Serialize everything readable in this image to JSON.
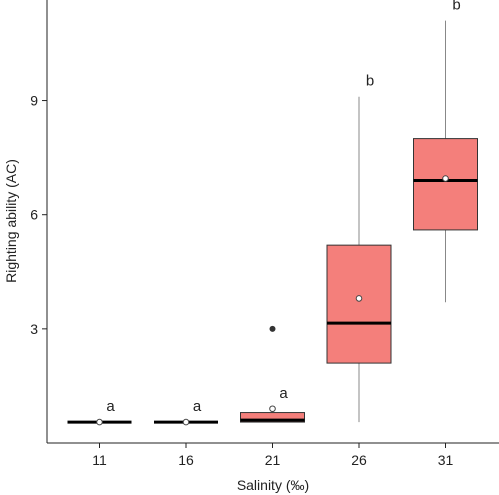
{
  "chart_data": {
    "type": "box",
    "xlabel": "Salinity (‰)",
    "ylabel": "Righting ability (AC)",
    "ylim": [
      0,
      11.3
    ],
    "yticks": [
      3,
      6,
      9
    ],
    "grid": false,
    "legend": "none",
    "box_color": "#f47f7b",
    "categories": [
      "11",
      "16",
      "21",
      "26",
      "31"
    ],
    "boxes": [
      {
        "category": "11",
        "min": 0.55,
        "q1": 0.55,
        "median": 0.55,
        "q3": 0.55,
        "max": 0.55,
        "mean": 0.55,
        "outliers": [],
        "label": "a"
      },
      {
        "category": "16",
        "min": 0.55,
        "q1": 0.55,
        "median": 0.55,
        "q3": 0.55,
        "max": 0.55,
        "mean": 0.55,
        "outliers": [],
        "label": "a"
      },
      {
        "category": "21",
        "min": 0.55,
        "q1": 0.55,
        "median": 0.6,
        "q3": 0.8,
        "max": 0.8,
        "mean": 0.9,
        "outliers": [
          3.0
        ],
        "label": "a"
      },
      {
        "category": "26",
        "min": 0.55,
        "q1": 2.1,
        "median": 3.15,
        "q3": 5.2,
        "max": 9.1,
        "mean": 3.8,
        "outliers": [],
        "label": "b"
      },
      {
        "category": "31",
        "min": 3.7,
        "q1": 5.6,
        "median": 6.9,
        "q3": 8.0,
        "max": 11.1,
        "mean": 6.95,
        "outliers": [],
        "label": "b"
      }
    ]
  }
}
